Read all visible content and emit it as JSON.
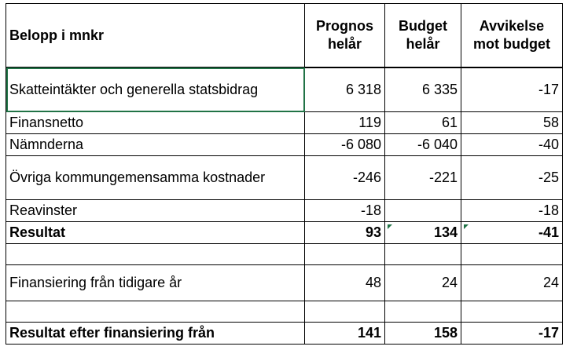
{
  "table": {
    "header": {
      "label": "Belopp i mnkr",
      "col_prognos": [
        "Prognos",
        "helår"
      ],
      "col_budget": [
        "Budget",
        "helår"
      ],
      "col_avvikelse": [
        "Avvikelse",
        "mot budget"
      ]
    },
    "rows": [
      {
        "label": "Skatteintäkter och generella statsbidrag",
        "prognos": "6 318",
        "budget": "6 335",
        "avvikelse": "-17"
      },
      {
        "label": "Finansnetto",
        "prognos": "119",
        "budget": "61",
        "avvikelse": "58"
      },
      {
        "label": "Nämnderna",
        "prognos": "-6 080",
        "budget": "-6 040",
        "avvikelse": "-40"
      },
      {
        "label": "Övriga kommungemensamma kostnader",
        "prognos": "-246",
        "budget": "-221",
        "avvikelse": "-25"
      },
      {
        "label": "Reavinster",
        "prognos": "-18",
        "budget": "",
        "avvikelse": "-18"
      },
      {
        "label": "Resultat",
        "prognos": "93",
        "budget": "134",
        "avvikelse": "-41"
      },
      {
        "label": "",
        "prognos": "",
        "budget": "",
        "avvikelse": ""
      },
      {
        "label": "Finansiering från tidigare år",
        "prognos": "48",
        "budget": "24",
        "avvikelse": "24"
      },
      {
        "label": "",
        "prognos": "",
        "budget": "",
        "avvikelse": ""
      },
      {
        "label": "Resultat efter finansiering från",
        "prognos": "141",
        "budget": "158",
        "avvikelse": "-17"
      }
    ]
  },
  "colors": {
    "selection": "#217346",
    "grid": "#000000"
  }
}
